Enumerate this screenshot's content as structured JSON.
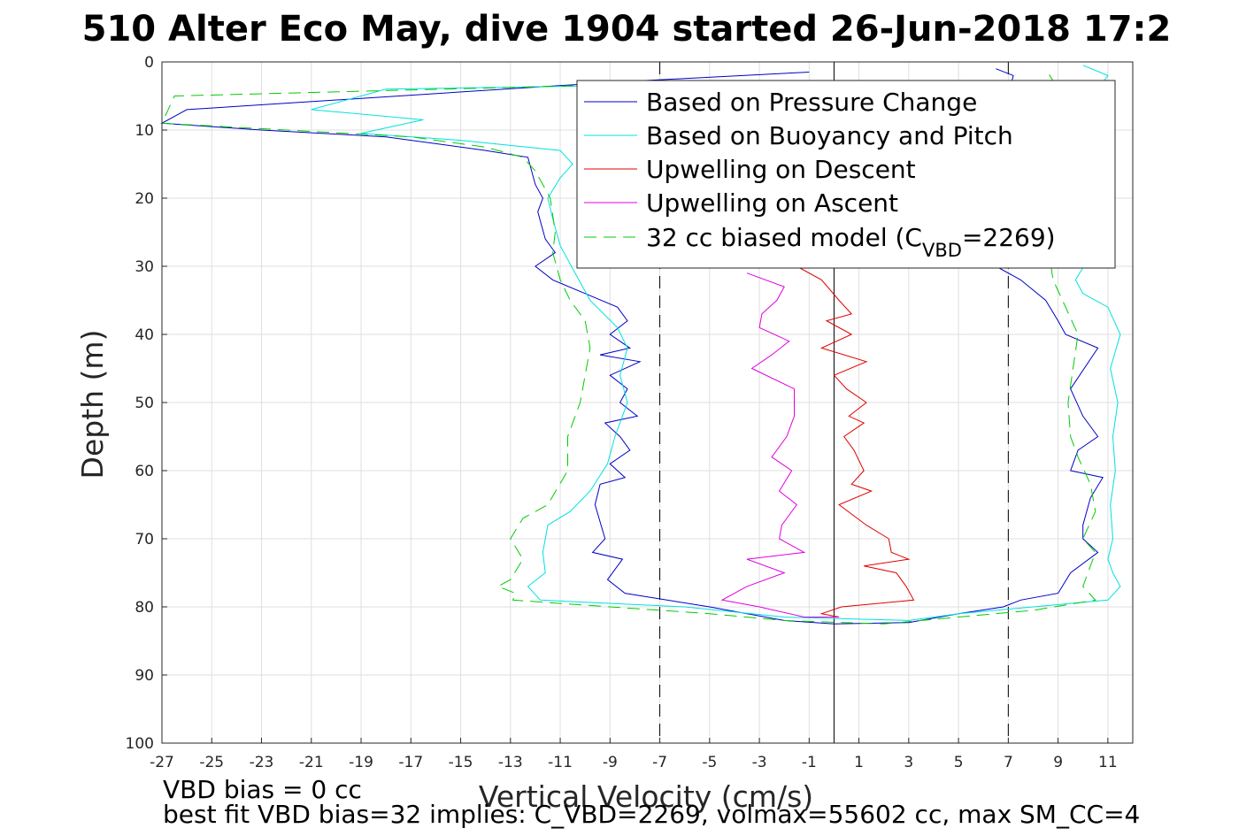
{
  "chart_data": {
    "type": "line",
    "title": "510 Alter Eco May, dive 1904 started 26-Jun-2018 17:2",
    "xlabel": "Vertical Velocity (cm/s)",
    "ylabel": "Depth (m)",
    "xlim": [
      -27,
      12
    ],
    "ylim": [
      0,
      100
    ],
    "y_reversed": true,
    "grid": true,
    "xticks": [
      "-27",
      "-25",
      "-23",
      "-21",
      "-19",
      "-17",
      "-15",
      "-13",
      "-11",
      "-9",
      "-7",
      "-5",
      "-3",
      "-1",
      "1",
      "3",
      "5",
      "7",
      "9",
      "11"
    ],
    "xtick_values": [
      -27,
      -25,
      -23,
      -21,
      -19,
      -17,
      -15,
      -13,
      -11,
      -9,
      -7,
      -5,
      -3,
      -1,
      1,
      3,
      5,
      7,
      9,
      11
    ],
    "yticks": [
      "0",
      "10",
      "20",
      "30",
      "40",
      "50",
      "60",
      "70",
      "80",
      "90",
      "100"
    ],
    "ytick_values": [
      0,
      10,
      20,
      30,
      40,
      50,
      60,
      70,
      80,
      90,
      100
    ],
    "legend_position": "top-right",
    "legend": [
      {
        "label": "Based on Pressure Change",
        "color": "#0000c8",
        "style": "solid"
      },
      {
        "label": "Based on Buoyancy and Pitch",
        "color": "#00e0e0",
        "style": "solid"
      },
      {
        "label": "Upwelling on Descent",
        "color": "#e00000",
        "style": "solid"
      },
      {
        "label": "Upwelling on Ascent",
        "color": "#e000e0",
        "style": "solid"
      },
      {
        "label_main": "32 cc biased model (C",
        "label_sub": "VBD",
        "label_end": "=2269)",
        "color": "#00cc00",
        "style": "dashed"
      }
    ],
    "reference_lines": [
      {
        "x": -7,
        "style": "dashed",
        "color": "#000000"
      },
      {
        "x": 0,
        "style": "solid",
        "color": "#000000"
      },
      {
        "x": 7,
        "style": "dashed",
        "color": "#000000"
      }
    ],
    "series": [
      {
        "name": "Based on Pressure Change",
        "color": "#0000c8",
        "dash": false,
        "points": [
          [
            -1,
            1.5
          ],
          [
            -9,
            3
          ],
          [
            -26,
            7
          ],
          [
            -27,
            9
          ],
          [
            -23,
            10
          ],
          [
            -18,
            11
          ],
          [
            -14,
            13
          ],
          [
            -12.3,
            14
          ],
          [
            -12,
            18
          ],
          [
            -11.7,
            20
          ],
          [
            -11.9,
            22
          ],
          [
            -11.6,
            26
          ],
          [
            -11.2,
            28
          ],
          [
            -12,
            30
          ],
          [
            -11.3,
            32
          ],
          [
            -10,
            34
          ],
          [
            -8.7,
            36
          ],
          [
            -8.3,
            38
          ],
          [
            -9,
            40
          ],
          [
            -8.2,
            42
          ],
          [
            -9.4,
            43
          ],
          [
            -7.8,
            44
          ],
          [
            -9,
            46
          ],
          [
            -8.3,
            48
          ],
          [
            -8.6,
            50
          ],
          [
            -7.9,
            52
          ],
          [
            -9.2,
            53
          ],
          [
            -8.6,
            55
          ],
          [
            -8.2,
            57
          ],
          [
            -9,
            59
          ],
          [
            -8.4,
            61
          ],
          [
            -9.4,
            62
          ],
          [
            -9.6,
            65
          ],
          [
            -9.2,
            70
          ],
          [
            -9.7,
            72
          ],
          [
            -8.5,
            73
          ],
          [
            -9.1,
            76
          ],
          [
            -8.4,
            78
          ],
          [
            -5,
            80
          ],
          [
            -2,
            82
          ],
          [
            0,
            82.5
          ],
          [
            3,
            82.3
          ],
          [
            5,
            81
          ],
          [
            6.8,
            80
          ],
          [
            7.5,
            79
          ],
          [
            9,
            78
          ],
          [
            9.5,
            75
          ],
          [
            10.6,
            72
          ],
          [
            10,
            70
          ],
          [
            10,
            68
          ],
          [
            10.3,
            64
          ],
          [
            10.8,
            61
          ],
          [
            9.5,
            60
          ],
          [
            9.8,
            57
          ],
          [
            10.6,
            55
          ],
          [
            10,
            52
          ],
          [
            9.5,
            48
          ],
          [
            10.6,
            42
          ],
          [
            9.3,
            40
          ],
          [
            9,
            38
          ],
          [
            8.5,
            35
          ],
          [
            7.5,
            32
          ],
          [
            6.5,
            30
          ],
          [
            7.5,
            25
          ],
          [
            8,
            20
          ],
          [
            8,
            15
          ],
          [
            7,
            10
          ],
          [
            7,
            5
          ],
          [
            7.2,
            2
          ],
          [
            6.5,
            1
          ]
        ]
      },
      {
        "name": "Based on Buoyancy and Pitch",
        "color": "#00e0e0",
        "dash": false,
        "points": [
          [
            -1,
            3
          ],
          [
            -18,
            4
          ],
          [
            -21,
            7
          ],
          [
            -16.5,
            8.5
          ],
          [
            -19,
            10.5
          ],
          [
            -15,
            11.5
          ],
          [
            -11,
            13
          ],
          [
            -10.5,
            15
          ],
          [
            -11,
            17
          ],
          [
            -11.5,
            20
          ],
          [
            -11.3,
            23
          ],
          [
            -11,
            27
          ],
          [
            -10.4,
            31
          ],
          [
            -9.8,
            35
          ],
          [
            -8.7,
            39
          ],
          [
            -8.3,
            42
          ],
          [
            -8.6,
            46
          ],
          [
            -8.3,
            50
          ],
          [
            -8.8,
            55
          ],
          [
            -9.1,
            59
          ],
          [
            -9.8,
            63
          ],
          [
            -10.6,
            66
          ],
          [
            -11.5,
            68
          ],
          [
            -11.7,
            72
          ],
          [
            -11.6,
            75
          ],
          [
            -12.3,
            77
          ],
          [
            -11.8,
            79
          ],
          [
            -6,
            80
          ],
          [
            -2,
            81.5
          ],
          [
            3,
            82
          ],
          [
            5,
            81
          ],
          [
            8,
            80
          ],
          [
            11,
            79
          ],
          [
            11.5,
            77
          ],
          [
            11.2,
            75
          ],
          [
            11,
            73
          ],
          [
            11.2,
            70
          ],
          [
            11.1,
            65
          ],
          [
            11.3,
            60
          ],
          [
            11.2,
            55
          ],
          [
            11.4,
            50
          ],
          [
            11.1,
            45
          ],
          [
            11.5,
            40
          ],
          [
            11,
            36
          ],
          [
            10,
            34
          ],
          [
            9.7,
            32
          ],
          [
            10.2,
            29
          ],
          [
            10.5,
            25
          ],
          [
            10.3,
            20
          ],
          [
            10.5,
            15
          ],
          [
            10.6,
            10
          ],
          [
            10.4,
            5
          ],
          [
            11,
            2
          ],
          [
            10,
            0.5
          ]
        ]
      },
      {
        "name": "Upwelling on Descent",
        "color": "#e00000",
        "dash": false,
        "points": [
          [
            -1.5,
            30
          ],
          [
            -0.5,
            32
          ],
          [
            0.2,
            35
          ],
          [
            0.7,
            37
          ],
          [
            -0.3,
            38
          ],
          [
            0.7,
            40
          ],
          [
            -0.5,
            42
          ],
          [
            1.3,
            44
          ],
          [
            0,
            46
          ],
          [
            0.5,
            48
          ],
          [
            1.3,
            50
          ],
          [
            0.6,
            52
          ],
          [
            1.2,
            53
          ],
          [
            0.4,
            55
          ],
          [
            0.8,
            57
          ],
          [
            1.2,
            60
          ],
          [
            0.7,
            62
          ],
          [
            1.5,
            63
          ],
          [
            0.2,
            65
          ],
          [
            1.3,
            68
          ],
          [
            2.2,
            70
          ],
          [
            2.3,
            72
          ],
          [
            3,
            73
          ],
          [
            1.2,
            74
          ],
          [
            2.5,
            75
          ],
          [
            2.9,
            77
          ],
          [
            3.2,
            79
          ],
          [
            0.3,
            80
          ],
          [
            -0.5,
            81
          ],
          [
            0.2,
            81.5
          ]
        ]
      },
      {
        "name": "Upwelling on Ascent",
        "color": "#e000e0",
        "dash": false,
        "points": [
          [
            -3.5,
            31
          ],
          [
            -2,
            33
          ],
          [
            -2.3,
            35
          ],
          [
            -2.9,
            37
          ],
          [
            -3,
            39
          ],
          [
            -1.8,
            41
          ],
          [
            -2.5,
            43
          ],
          [
            -3.3,
            45
          ],
          [
            -1.6,
            48
          ],
          [
            -1.6,
            52
          ],
          [
            -1.9,
            55
          ],
          [
            -2.5,
            58
          ],
          [
            -1.7,
            60
          ],
          [
            -2.2,
            63
          ],
          [
            -1.5,
            65
          ],
          [
            -2.1,
            68
          ],
          [
            -2.2,
            70
          ],
          [
            -1.2,
            72
          ],
          [
            -3.5,
            73
          ],
          [
            -2,
            75
          ],
          [
            -3.5,
            77
          ],
          [
            -4.5,
            79
          ],
          [
            -3,
            80
          ],
          [
            -1.2,
            81.5
          ],
          [
            0.2,
            81.5
          ]
        ]
      },
      {
        "name": "32 cc biased model (CVBD=2269)",
        "color": "#00cc00",
        "dash": true,
        "points": [
          [
            -5,
            3
          ],
          [
            -26.5,
            5
          ],
          [
            -27,
            9
          ],
          [
            -22,
            10
          ],
          [
            -17,
            11
          ],
          [
            -14,
            12.5
          ],
          [
            -12.5,
            14
          ],
          [
            -12,
            16
          ],
          [
            -11.4,
            20
          ],
          [
            -11.2,
            25
          ],
          [
            -11.3,
            28
          ],
          [
            -11,
            32
          ],
          [
            -10.6,
            35
          ],
          [
            -10,
            38
          ],
          [
            -9.8,
            42
          ],
          [
            -10,
            46
          ],
          [
            -10.2,
            50
          ],
          [
            -10.7,
            55
          ],
          [
            -10.7,
            60
          ],
          [
            -11.5,
            65
          ],
          [
            -12.5,
            67
          ],
          [
            -13,
            70
          ],
          [
            -12.5,
            73
          ],
          [
            -13,
            76
          ],
          [
            -13.5,
            77
          ],
          [
            -12.8,
            78
          ],
          [
            -12.9,
            79
          ],
          [
            -9,
            80
          ],
          [
            -5,
            81
          ],
          [
            -2,
            82
          ],
          [
            2,
            82.5
          ],
          [
            5,
            81.5
          ],
          [
            8,
            80.5
          ],
          [
            10.5,
            79
          ],
          [
            10,
            77
          ],
          [
            10.5,
            72
          ],
          [
            10,
            70
          ],
          [
            10.5,
            66
          ],
          [
            10.3,
            62
          ],
          [
            9.8,
            58
          ],
          [
            9.5,
            55
          ],
          [
            9.4,
            50
          ],
          [
            9.6,
            45
          ],
          [
            9.8,
            40
          ],
          [
            9.3,
            36
          ],
          [
            8.8,
            32
          ],
          [
            8.5,
            25
          ],
          [
            8.8,
            15
          ],
          [
            9,
            8
          ],
          [
            9,
            4
          ],
          [
            8.5,
            1
          ]
        ]
      }
    ]
  },
  "footer": {
    "line1": "VBD bias = 0 cc",
    "line2": "best fit VBD bias=32 implies: C_VBD=2269, volmax=55602 cc, max SM_CC=4"
  }
}
